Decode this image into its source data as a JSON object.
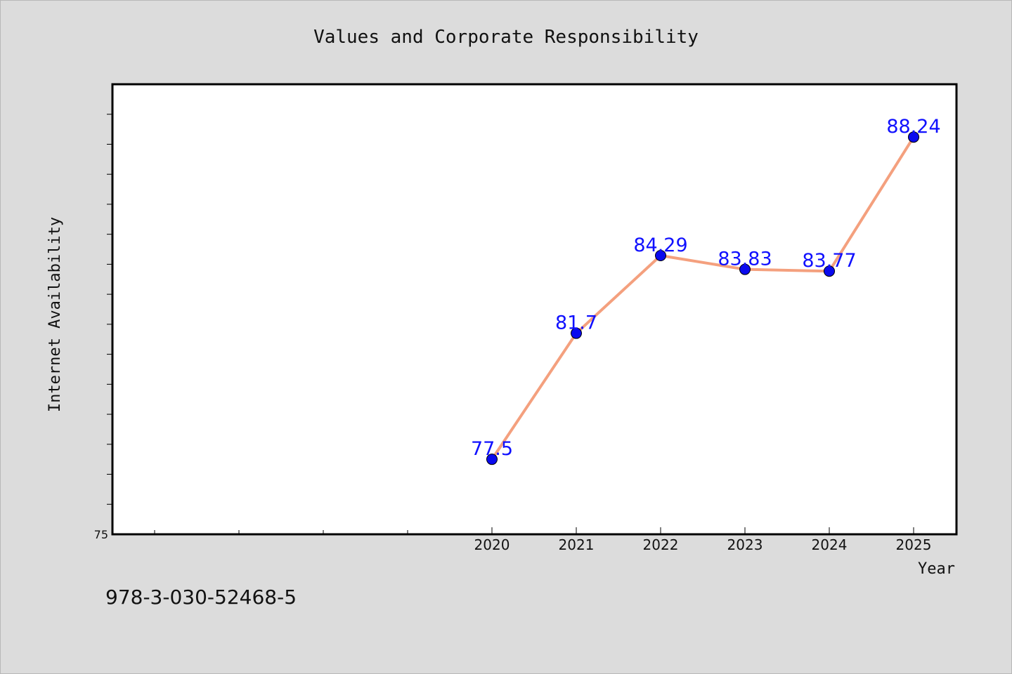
{
  "chart_data": {
    "type": "line",
    "title": "Values and Corporate Responsibility",
    "xlabel": "Year",
    "ylabel": "Internet Availability",
    "x": [
      "2020",
      "2021",
      "2022",
      "2023",
      "2024",
      "2025"
    ],
    "values": [
      77.5,
      81.7,
      84.29,
      83.83,
      83.77,
      88.24
    ],
    "data_labels": [
      "77.5",
      "81.7",
      "84.29",
      "83.83",
      "83.77",
      "88.24"
    ],
    "ylim": [
      75,
      90
    ],
    "y_tick_labels": [
      "75"
    ],
    "grid": false,
    "colors": {
      "line": "#f4a07e",
      "marker": "#0a0aee",
      "label": "#1010ff",
      "plot_bg": "#ffffff",
      "figure_bg": "#dcdcdc"
    }
  },
  "footer": {
    "isbn": "978-3-030-52468-5"
  }
}
